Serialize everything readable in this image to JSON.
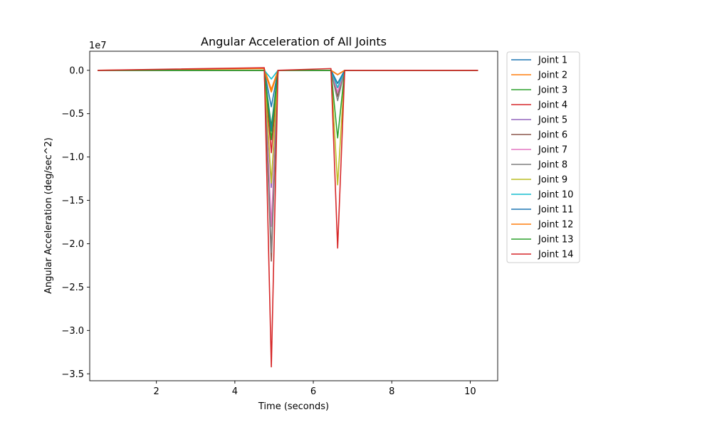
{
  "chart_data": {
    "type": "line",
    "title": "Angular Acceleration of All Joints",
    "xlabel": "Time (seconds)",
    "ylabel": "Angular Acceleration (deg/sec^2)",
    "offset_label": "1e7",
    "xlim": [
      0.3,
      10.7
    ],
    "ylim": [
      -3.58,
      0.22
    ],
    "x_ticks": [
      2,
      4,
      6,
      8,
      10
    ],
    "x_tick_labels": [
      "2",
      "4",
      "6",
      "8",
      "10"
    ],
    "y_ticks": [
      0.0,
      -0.5,
      -1.0,
      -1.5,
      -2.0,
      -2.5,
      -3.0,
      -3.5
    ],
    "y_tick_labels": [
      "0.0",
      "−0.5",
      "−1.0",
      "−1.5",
      "−2.0",
      "−2.5",
      "−3.0",
      "−3.5"
    ],
    "grid": false,
    "legend_position": "outside-right",
    "x": [
      0.5,
      4.75,
      4.93,
      5.1,
      6.45,
      6.62,
      6.8,
      10.2
    ],
    "series": [
      {
        "name": "Joint 1",
        "color": "#1f77b4",
        "values": [
          0,
          0,
          -0.42,
          0,
          0,
          -0.05,
          0,
          0
        ]
      },
      {
        "name": "Joint 2",
        "color": "#ff7f0e",
        "values": [
          0,
          0.02,
          -0.22,
          0,
          0,
          -0.05,
          0,
          0
        ]
      },
      {
        "name": "Joint 3",
        "color": "#2ca02c",
        "values": [
          0,
          0,
          -0.65,
          0,
          0,
          -0.15,
          0,
          0
        ]
      },
      {
        "name": "Joint 4",
        "color": "#d62728",
        "values": [
          0,
          0,
          -0.95,
          0,
          0,
          -0.2,
          0,
          0
        ]
      },
      {
        "name": "Joint 5",
        "color": "#9467bd",
        "values": [
          0,
          0,
          -1.35,
          0,
          0,
          -0.3,
          0,
          0
        ]
      },
      {
        "name": "Joint 6",
        "color": "#8c564b",
        "values": [
          0,
          0,
          -2.2,
          0,
          0,
          -0.3,
          0,
          0
        ]
      },
      {
        "name": "Joint 7",
        "color": "#e377c2",
        "values": [
          0,
          0,
          -1.8,
          0,
          0,
          -0.25,
          0,
          0
        ]
      },
      {
        "name": "Joint 8",
        "color": "#7f7f7f",
        "values": [
          0,
          0,
          -2.1,
          0,
          0,
          -0.35,
          0,
          0
        ]
      },
      {
        "name": "Joint 9",
        "color": "#bcbd22",
        "values": [
          0,
          0,
          -1.3,
          0,
          0,
          -1.32,
          0,
          0
        ]
      },
      {
        "name": "Joint 10",
        "color": "#17becf",
        "values": [
          0,
          0,
          -0.1,
          0,
          0,
          -0.2,
          0,
          0
        ]
      },
      {
        "name": "Joint 11",
        "color": "#1f77b4",
        "values": [
          0,
          0,
          -0.7,
          0,
          0,
          -0.15,
          0,
          0
        ]
      },
      {
        "name": "Joint 12",
        "color": "#ff7f0e",
        "values": [
          0,
          0,
          -0.25,
          0,
          0,
          -0.05,
          0,
          0
        ]
      },
      {
        "name": "Joint 13",
        "color": "#2ca02c",
        "values": [
          0,
          0,
          -0.8,
          0,
          0,
          -0.78,
          0,
          0
        ]
      },
      {
        "name": "Joint 14",
        "color": "#d62728",
        "values": [
          0,
          0.03,
          -3.42,
          0,
          0.02,
          -2.05,
          0,
          0
        ]
      }
    ]
  }
}
